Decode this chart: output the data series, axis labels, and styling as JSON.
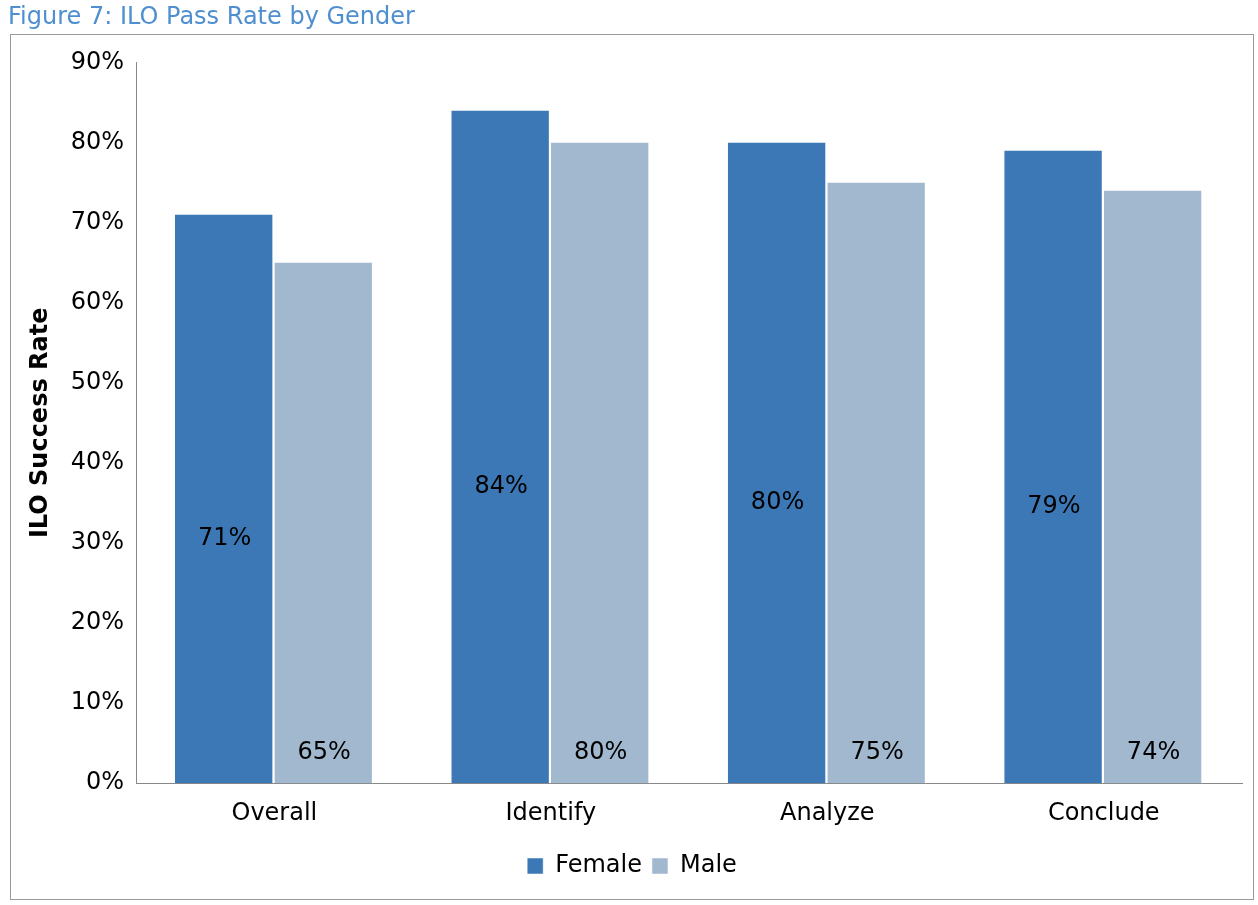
{
  "chart_data": {
    "type": "bar",
    "title": "Figure 7: ILO Pass Rate by Gender",
    "ylabel": "ILO Success Rate",
    "categories": [
      "Overall",
      "Identify",
      "Analyze",
      "Conclude"
    ],
    "series": [
      {
        "name": "Female",
        "color": "#3c78b5",
        "values": [
          71,
          84,
          80,
          79
        ],
        "value_labels": [
          "71%",
          "84%",
          "80%",
          "79%"
        ]
      },
      {
        "name": "Male",
        "color": "#a2b8cf",
        "values": [
          65,
          80,
          75,
          74
        ],
        "value_labels": [
          "65%",
          "80%",
          "75%",
          "74%"
        ]
      }
    ],
    "ylim": [
      0,
      90
    ],
    "yticks": [
      {
        "value": 0,
        "label": "0%"
      },
      {
        "value": 10,
        "label": "10%"
      },
      {
        "value": 20,
        "label": "20%"
      },
      {
        "value": 30,
        "label": "30%"
      },
      {
        "value": 40,
        "label": "40%"
      },
      {
        "value": 50,
        "label": "50%"
      },
      {
        "value": 60,
        "label": "60%"
      },
      {
        "value": 70,
        "label": "70%"
      },
      {
        "value": 80,
        "label": "80%"
      },
      {
        "value": 90,
        "label": "90%"
      }
    ],
    "grid": false,
    "legend": "bottom"
  }
}
